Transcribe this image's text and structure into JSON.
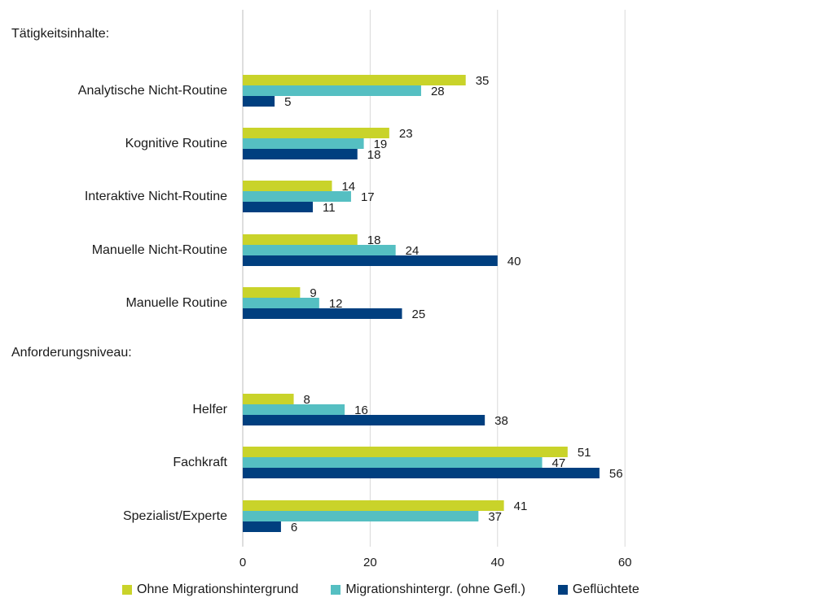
{
  "chart_data": {
    "type": "bar",
    "orientation": "horizontal",
    "xlim": [
      0,
      60
    ],
    "xticks": [
      0,
      20,
      40,
      60
    ],
    "grid": true,
    "legend_position": "bottom",
    "groups": [
      {
        "label": "Tätigkeitsinhalte:",
        "categories": [
          "Analytische Nicht-Routine",
          "Kognitive Routine",
          "Interaktive Nicht-Routine",
          "Manuelle Nicht-Routine",
          "Manuelle Routine"
        ]
      },
      {
        "label": "Anforderungsniveau:",
        "categories": [
          "Helfer",
          "Fachkraft",
          "Spezialist/Experte"
        ]
      }
    ],
    "series": [
      {
        "name": "Ohne Migrationshintergrund",
        "color": "#c9d32a",
        "values": [
          35,
          23,
          14,
          18,
          9,
          8,
          51,
          41
        ]
      },
      {
        "name": "Migrationshintergr. (ohne Gefl.)",
        "color": "#55bfc2",
        "values": [
          28,
          19,
          17,
          24,
          12,
          16,
          47,
          37
        ]
      },
      {
        "name": "Geflüchtete",
        "color": "#003f7f",
        "values": [
          5,
          18,
          11,
          40,
          25,
          38,
          56,
          6
        ]
      }
    ]
  }
}
